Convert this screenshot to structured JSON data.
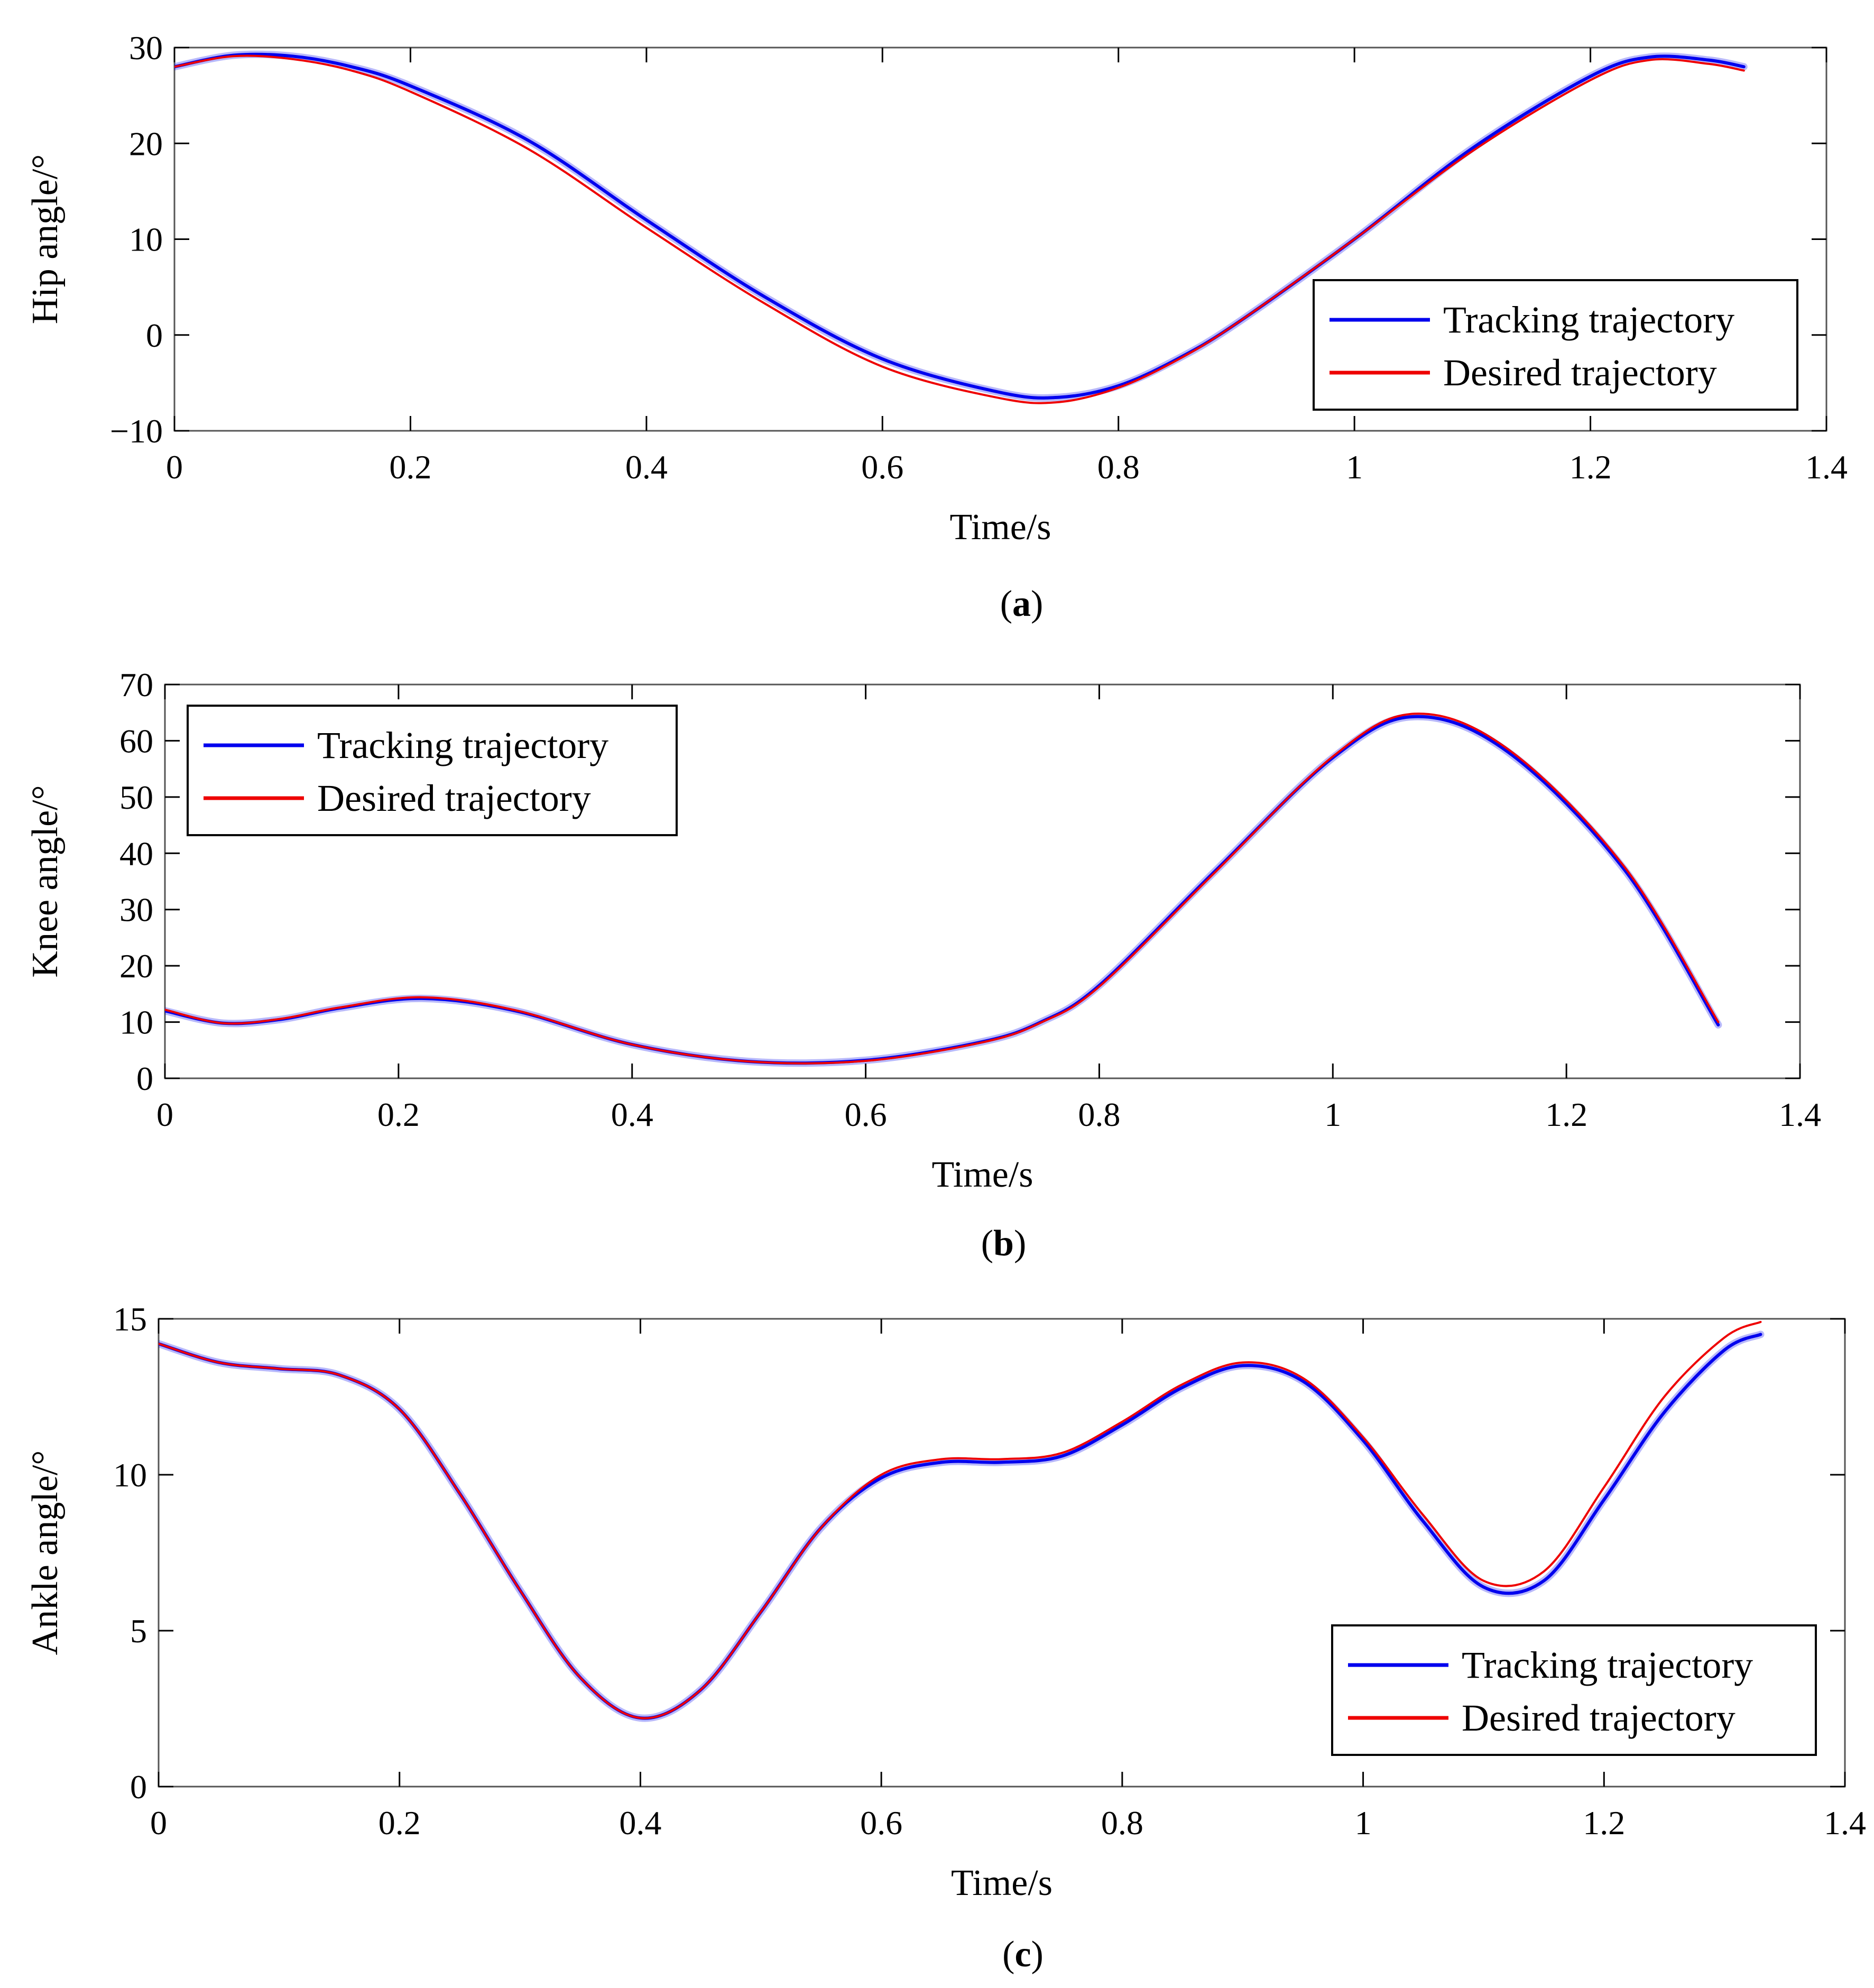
{
  "chart_data": [
    {
      "panel": "a",
      "type": "line",
      "caption_letter": "a",
      "xlabel": "Time/s",
      "ylabel": "Hip angle/°",
      "xlim": [
        0,
        1.4
      ],
      "ylim": [
        -10,
        30
      ],
      "xticks": [
        0,
        0.2,
        0.4,
        0.6,
        0.8,
        1,
        1.2,
        1.4
      ],
      "xtick_labels": [
        "0",
        "0.2",
        "0.4",
        "0.6",
        "0.8",
        "1",
        "1.2",
        "1.4"
      ],
      "yticks": [
        -10,
        0,
        10,
        20,
        30
      ],
      "ytick_labels": [
        "−10",
        "0",
        "10",
        "20",
        "30"
      ],
      "legend": {
        "position": "lower-right",
        "entries": [
          "Tracking trajectory",
          "Desired trajectory"
        ]
      },
      "series": [
        {
          "name": "Tracking trajectory",
          "color": "#0000ee",
          "x": [
            0,
            0.05,
            0.1,
            0.15,
            0.2,
            0.3,
            0.4,
            0.5,
            0.6,
            0.7,
            0.75,
            0.8,
            0.85,
            0.9,
            1.0,
            1.1,
            1.2,
            1.25,
            1.3,
            1.33
          ],
          "values": [
            28,
            29.2,
            29.1,
            28,
            26,
            20.3,
            12,
            4,
            -2.5,
            -6,
            -6.5,
            -5.3,
            -2.5,
            1.2,
            10,
            19.5,
            27,
            29,
            28.7,
            28
          ]
        },
        {
          "name": "Desired trajectory",
          "color": "#ee0000",
          "x": [
            0,
            0.05,
            0.1,
            0.15,
            0.2,
            0.3,
            0.4,
            0.5,
            0.6,
            0.7,
            0.75,
            0.8,
            0.85,
            0.9,
            1.0,
            1.1,
            1.2,
            1.25,
            1.3,
            1.33
          ],
          "values": [
            28,
            29.1,
            28.8,
            27.6,
            25.4,
            19.4,
            11.2,
            3.3,
            -3.3,
            -6.6,
            -7,
            -5.5,
            -2.6,
            1.2,
            10,
            19.2,
            26.6,
            28.7,
            28.3,
            27.6
          ]
        }
      ]
    },
    {
      "panel": "b",
      "type": "line",
      "caption_letter": "b",
      "xlabel": "Time/s",
      "ylabel": "Knee angle/°",
      "xlim": [
        0,
        1.4
      ],
      "ylim": [
        0,
        70
      ],
      "xticks": [
        0,
        0.2,
        0.4,
        0.6,
        0.8,
        1,
        1.2,
        1.4
      ],
      "xtick_labels": [
        "0",
        "0.2",
        "0.4",
        "0.6",
        "0.8",
        "1",
        "1.2",
        "1.4"
      ],
      "yticks": [
        0,
        10,
        20,
        30,
        40,
        50,
        60,
        70
      ],
      "ytick_labels": [
        "0",
        "10",
        "20",
        "30",
        "40",
        "50",
        "60",
        "70"
      ],
      "legend": {
        "position": "upper-left",
        "entries": [
          "Tracking trajectory",
          "Desired trajectory"
        ]
      },
      "series": [
        {
          "name": "Tracking trajectory",
          "color": "#0000ee",
          "x": [
            0,
            0.05,
            0.1,
            0.15,
            0.22,
            0.3,
            0.4,
            0.5,
            0.6,
            0.7,
            0.75,
            0.8,
            0.9,
            1.0,
            1.07,
            1.15,
            1.25,
            1.33
          ],
          "values": [
            12,
            9.8,
            10.5,
            12.5,
            14.2,
            12,
            6,
            3,
            3.2,
            6.5,
            10,
            16.5,
            37,
            57,
            64.3,
            58,
            37,
            9.5
          ]
        },
        {
          "name": "Desired trajectory",
          "color": "#ee0000",
          "x": [
            0,
            0.05,
            0.1,
            0.15,
            0.22,
            0.3,
            0.4,
            0.5,
            0.6,
            0.7,
            0.75,
            0.8,
            0.9,
            1.0,
            1.07,
            1.15,
            1.25,
            1.33
          ],
          "values": [
            12.2,
            9.8,
            10.6,
            12.6,
            14.4,
            12.1,
            6,
            3,
            3.1,
            6.4,
            9.9,
            16.3,
            36.8,
            57.2,
            64.8,
            58.5,
            37.5,
            10
          ]
        }
      ]
    },
    {
      "panel": "c",
      "type": "line",
      "caption_letter": "c",
      "xlabel": "Time/s",
      "ylabel": "Ankle angle/°",
      "xlim": [
        0,
        1.4
      ],
      "ylim": [
        0,
        15
      ],
      "xticks": [
        0,
        0.2,
        0.4,
        0.6,
        0.8,
        1,
        1.2,
        1.4
      ],
      "xtick_labels": [
        "0",
        "0.2",
        "0.4",
        "0.6",
        "0.8",
        "1",
        "1.2",
        "1.4"
      ],
      "yticks": [
        0,
        5,
        10,
        15
      ],
      "ytick_labels": [
        "0",
        "5",
        "10",
        "15"
      ],
      "legend": {
        "position": "lower-right",
        "entries": [
          "Tracking trajectory",
          "Desired trajectory"
        ]
      },
      "series": [
        {
          "name": "Tracking trajectory",
          "color": "#0000ee",
          "x": [
            0,
            0.05,
            0.1,
            0.15,
            0.2,
            0.25,
            0.3,
            0.35,
            0.4,
            0.45,
            0.5,
            0.55,
            0.6,
            0.65,
            0.7,
            0.75,
            0.8,
            0.85,
            0.9,
            0.95,
            1.0,
            1.05,
            1.1,
            1.15,
            1.2,
            1.25,
            1.3,
            1.33
          ],
          "values": [
            14.2,
            13.6,
            13.4,
            13.2,
            12.1,
            9.4,
            6.3,
            3.5,
            2.2,
            3.1,
            5.6,
            8.3,
            9.9,
            10.4,
            10.4,
            10.6,
            11.6,
            12.8,
            13.5,
            13,
            11.1,
            8.5,
            6.4,
            6.6,
            9.2,
            12,
            14,
            14.5
          ]
        },
        {
          "name": "Desired trajectory",
          "color": "#ee0000",
          "x": [
            0,
            0.05,
            0.1,
            0.15,
            0.2,
            0.25,
            0.3,
            0.35,
            0.4,
            0.45,
            0.5,
            0.55,
            0.6,
            0.65,
            0.7,
            0.75,
            0.8,
            0.85,
            0.9,
            0.95,
            1.0,
            1.05,
            1.1,
            1.15,
            1.2,
            1.25,
            1.3,
            1.33
          ],
          "values": [
            14.2,
            13.6,
            13.4,
            13.2,
            12.1,
            9.4,
            6.3,
            3.5,
            2.2,
            3.1,
            5.6,
            8.3,
            10,
            10.5,
            10.5,
            10.7,
            11.7,
            12.9,
            13.6,
            13.1,
            11.2,
            8.7,
            6.6,
            6.9,
            9.6,
            12.5,
            14.4,
            14.9
          ]
        }
      ]
    }
  ]
}
